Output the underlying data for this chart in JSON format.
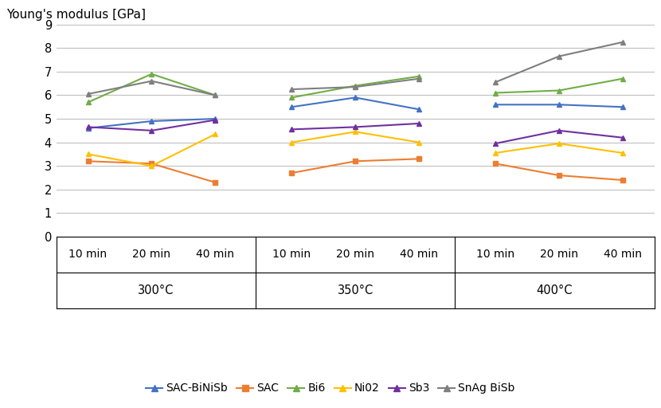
{
  "ylabel": "Young's modulus [GPa]",
  "ylim": [
    0,
    9
  ],
  "yticks": [
    0,
    1,
    2,
    3,
    4,
    5,
    6,
    7,
    8,
    9
  ],
  "groups": [
    "300°C",
    "350°C",
    "400°C"
  ],
  "group_keys": [
    "300",
    "350",
    "400"
  ],
  "time_labels": [
    "10 min",
    "20 min",
    "40 min"
  ],
  "series_order": [
    "SAC-BiNiSb",
    "SAC",
    "Bi6",
    "Ni02",
    "Sb3",
    "SnAg BiSb"
  ],
  "series": {
    "SAC-BiNiSb": {
      "color": "#4472C4",
      "marker": "^",
      "data": {
        "300": [
          4.6,
          4.9,
          5.0
        ],
        "350": [
          5.5,
          5.9,
          5.4
        ],
        "400": [
          5.6,
          5.6,
          5.5
        ]
      }
    },
    "SAC": {
      "color": "#ED7D31",
      "marker": "s",
      "data": {
        "300": [
          3.2,
          3.1,
          2.3
        ],
        "350": [
          2.7,
          3.2,
          3.3
        ],
        "400": [
          3.1,
          2.6,
          2.4
        ]
      }
    },
    "Bi6": {
      "color": "#70AD47",
      "marker": "^",
      "data": {
        "300": [
          5.7,
          6.9,
          6.0
        ],
        "350": [
          5.9,
          6.4,
          6.8
        ],
        "400": [
          6.1,
          6.2,
          6.7
        ]
      }
    },
    "Ni02": {
      "color": "#FFC000",
      "marker": "^",
      "data": {
        "300": [
          3.5,
          3.0,
          4.35
        ],
        "350": [
          4.0,
          4.45,
          4.0
        ],
        "400": [
          3.55,
          3.95,
          3.55
        ]
      }
    },
    "Sb3": {
      "color": "#7030A0",
      "marker": "^",
      "data": {
        "300": [
          4.65,
          4.5,
          4.95
        ],
        "350": [
          4.55,
          4.65,
          4.8
        ],
        "400": [
          3.95,
          4.5,
          4.2
        ]
      }
    },
    "SnAg BiSb": {
      "color": "#7F7F7F",
      "marker": "^",
      "data": {
        "300": [
          6.05,
          6.6,
          6.0
        ],
        "350": [
          6.25,
          6.35,
          6.7
        ],
        "400": [
          6.55,
          7.65,
          8.25
        ]
      }
    }
  },
  "background_color": "#FFFFFF",
  "grid_color": "#BFBFBF",
  "fontsize": 10.5,
  "legend_fontsize": 10,
  "title_fontsize": 11
}
